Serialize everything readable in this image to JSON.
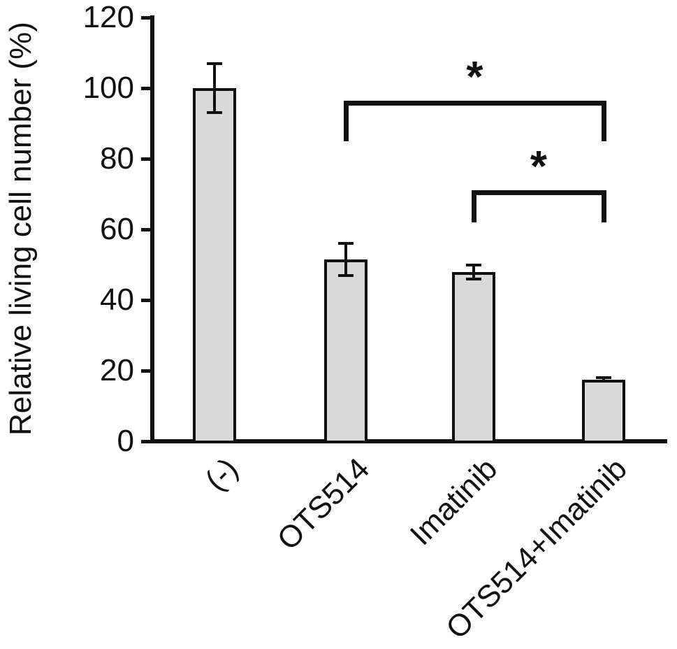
{
  "figure": {
    "colors": {
      "background": "#ffffff",
      "bar_fill": "#d9d9d9",
      "ink": "#111111"
    }
  },
  "chart_data": {
    "type": "bar",
    "title": "",
    "xlabel": "",
    "ylabel": "Relative living cell number (%)",
    "categories": [
      "(-)",
      "OTS514",
      "Imatinib",
      "OTS514+Imatinib"
    ],
    "values": [
      100,
      51.5,
      48,
      17.5
    ],
    "error_bars": [
      7,
      4.5,
      2,
      0.5
    ],
    "ylim": [
      0,
      120
    ],
    "yticks": [
      0,
      20,
      40,
      60,
      80,
      100,
      120
    ],
    "grid": false,
    "legend": null,
    "significance_brackets": [
      {
        "from": "OTS514",
        "to": "OTS514+Imatinib",
        "label": "*",
        "y_pct": 96.5,
        "drop_pct": 11.5
      },
      {
        "from": "Imatinib",
        "to": "OTS514+Imatinib",
        "label": "*",
        "y_pct": 71,
        "drop_pct": 9
      }
    ]
  }
}
